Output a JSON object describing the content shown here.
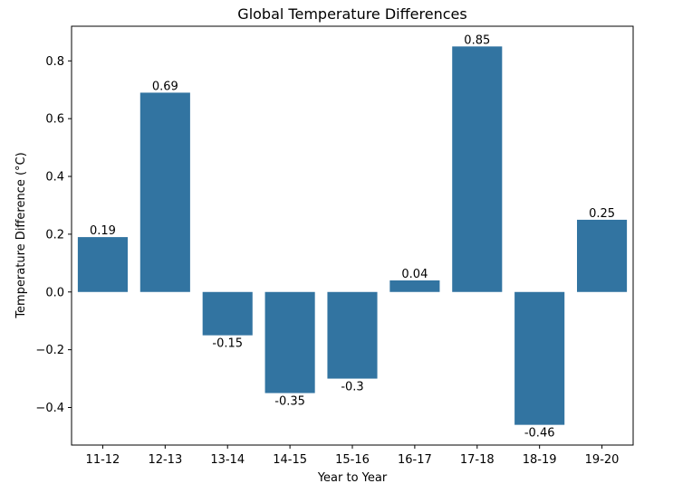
{
  "chart_data": {
    "type": "bar",
    "title": "Global Temperature Differences",
    "xlabel": "Year to Year",
    "ylabel": "Temperature Difference (°C)",
    "categories": [
      "11-12",
      "12-13",
      "13-14",
      "14-15",
      "15-16",
      "16-17",
      "17-18",
      "18-19",
      "19-20"
    ],
    "values": [
      0.19,
      0.69,
      -0.15,
      -0.35,
      -0.3,
      0.04,
      0.85,
      -0.46,
      0.25
    ],
    "value_labels": [
      "0.19",
      "0.69",
      "-0.15",
      "-0.35",
      "-0.3",
      "0.04",
      "0.85",
      "-0.46",
      "0.25"
    ],
    "ylim": [
      -0.53,
      0.92
    ],
    "yticks": [
      -0.4,
      -0.2,
      0.0,
      0.2,
      0.4,
      0.6,
      0.8
    ],
    "ytick_labels": [
      "−0.4",
      "−0.2",
      "0.0",
      "0.2",
      "0.4",
      "0.6",
      "0.8"
    ],
    "grid": false,
    "bar_color": "#3274a1"
  }
}
